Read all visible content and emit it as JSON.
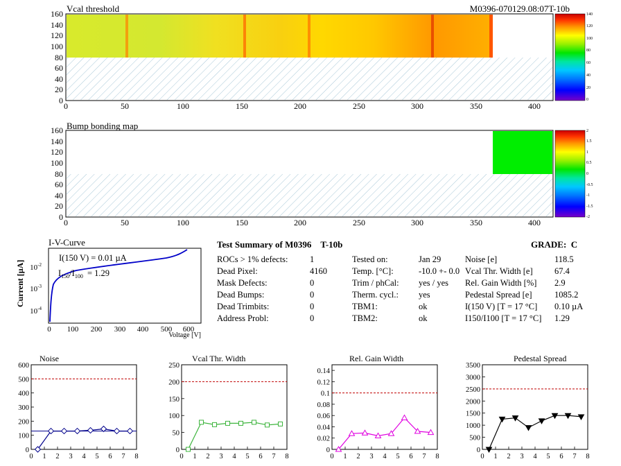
{
  "module_id": "M0396-070129.08:07T-10b",
  "vcal_map": {
    "title": "Vcal threshold",
    "x_ticks": [
      "0",
      "50",
      "100",
      "150",
      "200",
      "250",
      "300",
      "350",
      "400"
    ],
    "y_ticks": [
      "0",
      "20",
      "40",
      "60",
      "80",
      "100",
      "120",
      "140",
      "160"
    ],
    "z_ticks": [
      "0",
      "20",
      "40",
      "60",
      "80",
      "100",
      "120",
      "140"
    ],
    "x_range": [
      0,
      416
    ],
    "y_range": [
      0,
      160
    ],
    "z_range": [
      0,
      140
    ],
    "filled_rocs_x": [
      0,
      364
    ],
    "filled_rocs_y": [
      80,
      160
    ],
    "empty_region": "bottom half hatched"
  },
  "bump_map": {
    "title": "Bump bonding map",
    "x_ticks": [
      "0",
      "50",
      "100",
      "150",
      "200",
      "250",
      "300",
      "350",
      "400"
    ],
    "y_ticks": [
      "0",
      "20",
      "40",
      "60",
      "80",
      "100",
      "120",
      "140",
      "160"
    ],
    "z_ticks": [
      "-2",
      "-1.5",
      "-1",
      "-0.5",
      "0",
      "0.5",
      "1",
      "1.5",
      "2"
    ],
    "z_range": [
      -2,
      2
    ],
    "green_block_x": [
      364,
      416
    ],
    "green_block_y": [
      80,
      160
    ]
  },
  "iv": {
    "title": "I-V-Curve",
    "ylabel": "Current [µA]",
    "xlabel": "Voltage [V]",
    "x_ticks": [
      "0",
      "100",
      "200",
      "300",
      "400",
      "500",
      "600"
    ],
    "y_ticks": [
      "10",
      "10",
      "10"
    ],
    "y_exps": [
      "-4",
      "-3",
      "-2"
    ],
    "ann1": "I(150 V) = 0.01 µA",
    "ann2_main": "I",
    "ann2_sub1": "150",
    "ann2_mid": "/I",
    "ann2_sub2": "100",
    "ann2_val": "=  1.29"
  },
  "summary": {
    "title": "Test Summary of M0396",
    "title_suffix": "T-10b",
    "grade_label": "GRADE:",
    "grade": "C",
    "col1": [
      {
        "label": "ROCs > 1% defects:",
        "value": "1"
      },
      {
        "label": "Dead Pixel:",
        "value": "4160"
      },
      {
        "label": "Mask Defects:",
        "value": "0"
      },
      {
        "label": "Dead Bumps:",
        "value": "0"
      },
      {
        "label": "Dead Trimbits:",
        "value": "0"
      },
      {
        "label": "Address Probl:",
        "value": "0"
      }
    ],
    "col2": [
      {
        "label": "Tested on:",
        "value": "Jan 29"
      },
      {
        "label": "Temp. [°C]:",
        "value": "-10.0 +- 0.0"
      },
      {
        "label": "Trim / phCal:",
        "value": "yes / yes"
      },
      {
        "label": "Therm. cycl.:",
        "value": "yes"
      },
      {
        "label": "TBM1:",
        "value": "ok"
      },
      {
        "label": "TBM2:",
        "value": "ok"
      }
    ],
    "col3": [
      {
        "label": "Noise [e]",
        "value": "118.5"
      },
      {
        "label": "Vcal Thr. Width [e]",
        "value": "67.4"
      },
      {
        "label": "Rel. Gain Width [%]",
        "value": "2.9"
      },
      {
        "label": "Pedestal Spread [e]",
        "value": "1085.2"
      },
      {
        "label": "I(150 V) [T = 17 °C]",
        "value": "0.10 µA"
      },
      {
        "label": "I150/I100  [T = 17 °C]",
        "value": "1.29"
      }
    ]
  },
  "chart_data": [
    {
      "type": "line",
      "title": "Noise",
      "color": "#00008b",
      "marker": "diamond",
      "x": [
        0.5,
        1.5,
        2.5,
        3.5,
        4.5,
        5.5,
        6.5,
        7.5
      ],
      "values": [
        0,
        130,
        130,
        130,
        135,
        145,
        130,
        130
      ],
      "xlim": [
        0,
        8
      ],
      "ylim": [
        0,
        600
      ],
      "threshold": 500,
      "x_ticks": [
        "0",
        "1",
        "2",
        "3",
        "4",
        "5",
        "6",
        "7",
        "8"
      ],
      "y_ticks": [
        "0",
        "100",
        "200",
        "300",
        "400",
        "500",
        "600"
      ],
      "hline_at_value": 130
    },
    {
      "type": "line",
      "title": "Vcal Thr. Width",
      "color": "#3cb43c",
      "marker": "square",
      "x": [
        0.5,
        1.5,
        2.5,
        3.5,
        4.5,
        5.5,
        6.5,
        7.5
      ],
      "values": [
        0,
        80,
        73,
        77,
        77,
        80,
        72,
        75
      ],
      "xlim": [
        0,
        8
      ],
      "ylim": [
        0,
        250
      ],
      "threshold": 200,
      "x_ticks": [
        "0",
        "1",
        "2",
        "3",
        "4",
        "5",
        "6",
        "7",
        "8"
      ],
      "y_ticks": [
        "0",
        "50",
        "100",
        "150",
        "200",
        "250"
      ]
    },
    {
      "type": "line",
      "title": "Rel. Gain Width",
      "color": "#e000e0",
      "marker": "triangle",
      "x": [
        0.5,
        1.5,
        2.5,
        3.5,
        4.5,
        5.5,
        6.5,
        7.5
      ],
      "values": [
        0,
        0.028,
        0.029,
        0.024,
        0.028,
        0.056,
        0.032,
        0.03
      ],
      "xlim": [
        0,
        8
      ],
      "ylim": [
        0,
        0.15
      ],
      "threshold": 0.1,
      "x_ticks": [
        "0",
        "1",
        "2",
        "3",
        "4",
        "5",
        "6",
        "7",
        "8"
      ],
      "y_ticks": [
        "0",
        "0.02",
        "0.04",
        "0.06",
        "0.08",
        "0.1",
        "0.12",
        "0.14"
      ]
    },
    {
      "type": "line",
      "title": "Pedestal Spread",
      "color": "#000000",
      "marker": "triangle-down",
      "x": [
        0.5,
        1.5,
        2.5,
        3.5,
        4.5,
        5.5,
        6.5,
        7.5
      ],
      "values": [
        0,
        1250,
        1300,
        900,
        1180,
        1400,
        1400,
        1350
      ],
      "xlim": [
        0,
        8
      ],
      "ylim": [
        0,
        3500
      ],
      "threshold": 2500,
      "x_ticks": [
        "0",
        "1",
        "2",
        "3",
        "4",
        "5",
        "6",
        "7",
        "8"
      ],
      "y_ticks": [
        "0",
        "500",
        "1000",
        "1500",
        "2000",
        "2500",
        "3000",
        "3500"
      ]
    }
  ]
}
